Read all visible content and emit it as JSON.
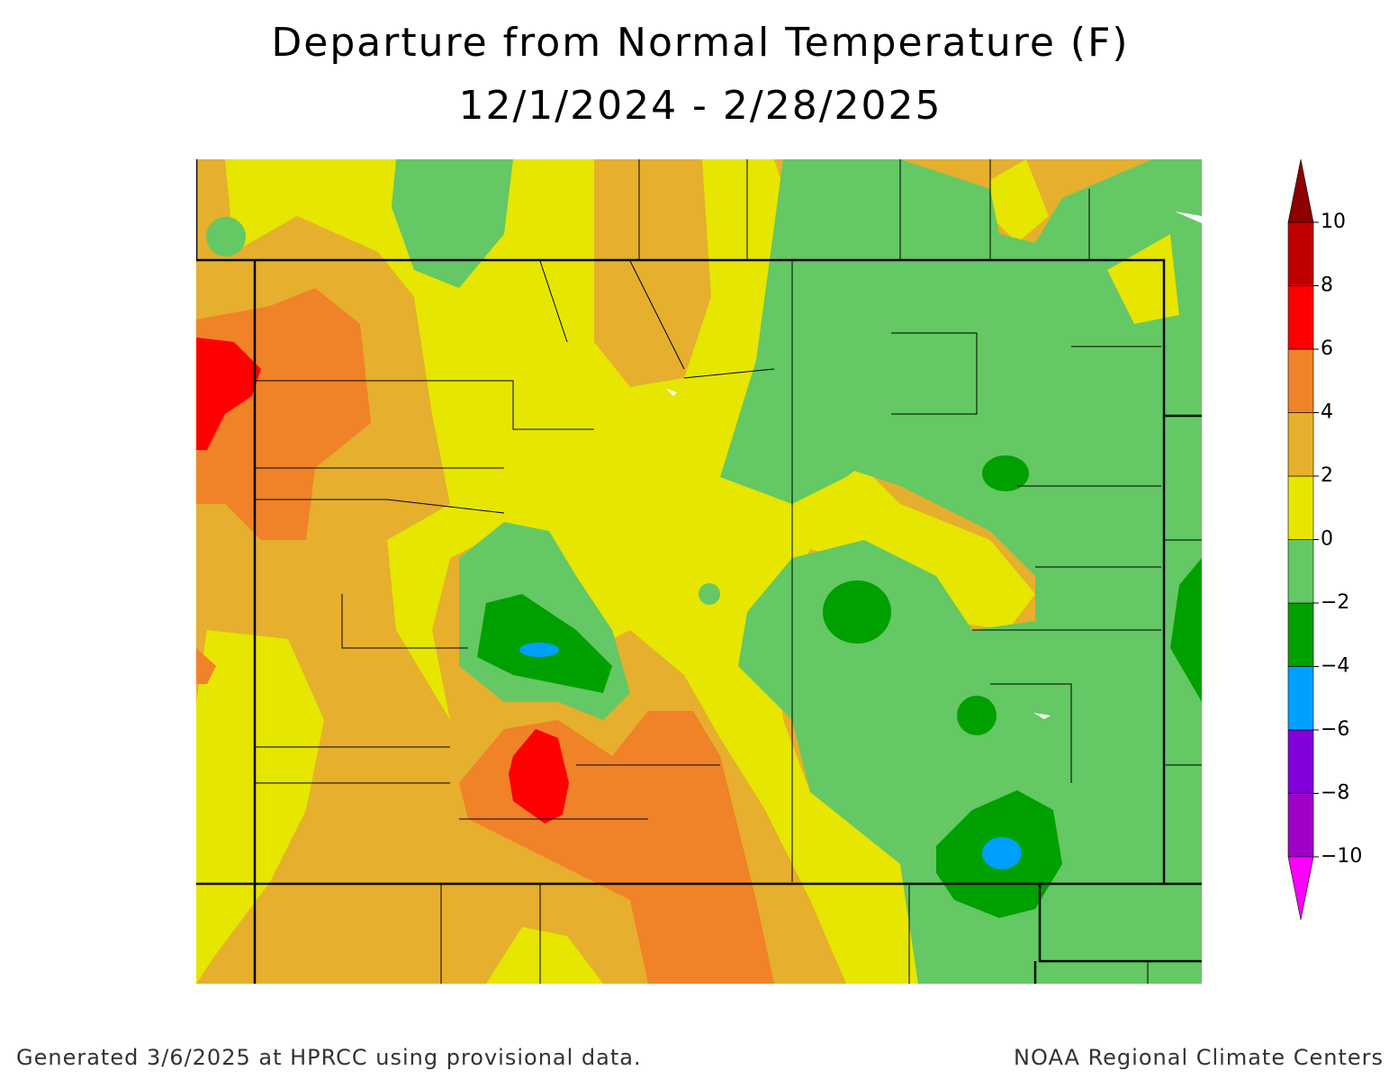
{
  "title": [
    "Departure from Normal Temperature (F)",
    "12/1/2024 - 2/28/2025"
  ],
  "legend": {
    "ticks": [
      {
        "value": -10,
        "label": "−10"
      },
      {
        "value": -8,
        "label": "−8"
      },
      {
        "value": -6,
        "label": "−6"
      },
      {
        "value": -4,
        "label": "−4"
      },
      {
        "value": -2,
        "label": "−2"
      },
      0,
      2,
      4,
      6,
      8,
      10
    ],
    "colors": [
      "#a000c8",
      "#8200dc",
      "#00a0ff",
      "#00a000",
      "#64c864",
      "#e6e600",
      "#e6af2d",
      "#f08228",
      "#ff0000",
      "#c00000"
    ],
    "under_color": "#ff00ff",
    "over_color": "#8c0000"
  },
  "footer": {
    "left": "Generated 3/6/2025 at HPRCC using provisional data.",
    "right": "NOAA Regional Climate Centers"
  }
}
